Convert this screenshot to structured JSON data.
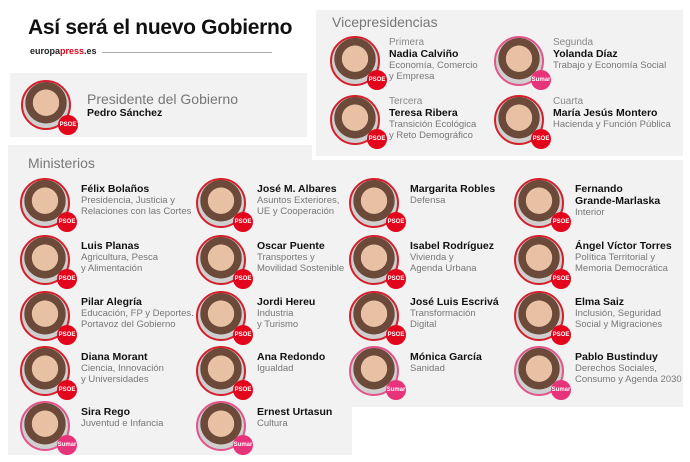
{
  "header": {
    "title": "Así será el nuevo Gobierno",
    "brand_a": "europa",
    "brand_b": "press",
    "brand_c": ".es"
  },
  "colors": {
    "psoe": "#e3051b",
    "sumar": "#e6337a",
    "panel": "#f2f2f2"
  },
  "president": {
    "heading": "Presidente del Gobierno",
    "name": "Pedro Sánchez",
    "party": "PSOE"
  },
  "vice": {
    "heading": "Vicepresidencias",
    "items": [
      {
        "rank": "Primera",
        "name": "Nadia Calviño",
        "role": [
          "Economía, Comercio",
          "y Empresa"
        ],
        "party": "PSOE"
      },
      {
        "rank": "Segunda",
        "name": "Yolanda Díaz",
        "role": [
          "Trabajo y Economía Social"
        ],
        "party": "Sumar"
      },
      {
        "rank": "Tercera",
        "name": "Teresa Ribera",
        "role": [
          "Transición Ecológica",
          "y Reto Demográfico"
        ],
        "party": "PSOE"
      },
      {
        "rank": "Cuarta",
        "name": "María Jesús Montero",
        "role": [
          "Hacienda y Función Pública"
        ],
        "party": "PSOE"
      }
    ]
  },
  "ministries": {
    "heading": "Ministerios",
    "items": [
      {
        "name": [
          "Félix Bolaños"
        ],
        "role": [
          "Presidencia, Justicia y",
          "Relaciones con las Cortes"
        ],
        "party": "PSOE"
      },
      {
        "name": [
          "José M. Albares"
        ],
        "role": [
          "Asuntos Exteriores,",
          "UE y Cooperación"
        ],
        "party": "PSOE"
      },
      {
        "name": [
          "Margarita Robles"
        ],
        "role": [
          "Defensa"
        ],
        "party": "PSOE"
      },
      {
        "name": [
          "Fernando",
          "Grande-Marlaska"
        ],
        "role": [
          "Interior"
        ],
        "party": "PSOE"
      },
      {
        "name": [
          "Luis Planas"
        ],
        "role": [
          "Agricultura, Pesca",
          "y Alimentación"
        ],
        "party": "PSOE"
      },
      {
        "name": [
          "Oscar Puente"
        ],
        "role": [
          "Transportes y",
          "Movilidad Sostenible"
        ],
        "party": "PSOE"
      },
      {
        "name": [
          "Isabel Rodríguez"
        ],
        "role": [
          "Vivienda y",
          "Agenda Urbana"
        ],
        "party": "PSOE"
      },
      {
        "name": [
          "Ángel Víctor Torres"
        ],
        "role": [
          "Política Territorial y",
          "Memoria Democrática"
        ],
        "party": "PSOE"
      },
      {
        "name": [
          "Pilar Alegría"
        ],
        "role": [
          "Educación, FP y Deportes.",
          "Portavoz del Gobierno"
        ],
        "party": "PSOE"
      },
      {
        "name": [
          "Jordi Hereu"
        ],
        "role": [
          "Industria",
          "y Turismo"
        ],
        "party": "PSOE"
      },
      {
        "name": [
          "José Luis Escrivá"
        ],
        "role": [
          "Transformación",
          "Digital"
        ],
        "party": "PSOE"
      },
      {
        "name": [
          "Elma Saiz"
        ],
        "role": [
          "Inclusión, Seguridad",
          "Social y Migraciones"
        ],
        "party": "PSOE"
      },
      {
        "name": [
          "Diana Morant"
        ],
        "role": [
          "Ciencia, Innovación",
          "y Universidades"
        ],
        "party": "PSOE"
      },
      {
        "name": [
          "Ana Redondo"
        ],
        "role": [
          "Igualdad"
        ],
        "party": "PSOE"
      },
      {
        "name": [
          "Mónica García"
        ],
        "role": [
          "Sanidad"
        ],
        "party": "Sumar"
      },
      {
        "name": [
          "Pablo Bustinduy"
        ],
        "role": [
          "Derechos Sociales,",
          "Consumo y Agenda 2030"
        ],
        "party": "Sumar"
      },
      {
        "name": [
          "Sira Rego"
        ],
        "role": [
          "Juventud e Infancia"
        ],
        "party": "Sumar"
      },
      {
        "name": [
          "Ernest Urtasun"
        ],
        "role": [
          "Cultura"
        ],
        "party": "Sumar"
      }
    ]
  }
}
